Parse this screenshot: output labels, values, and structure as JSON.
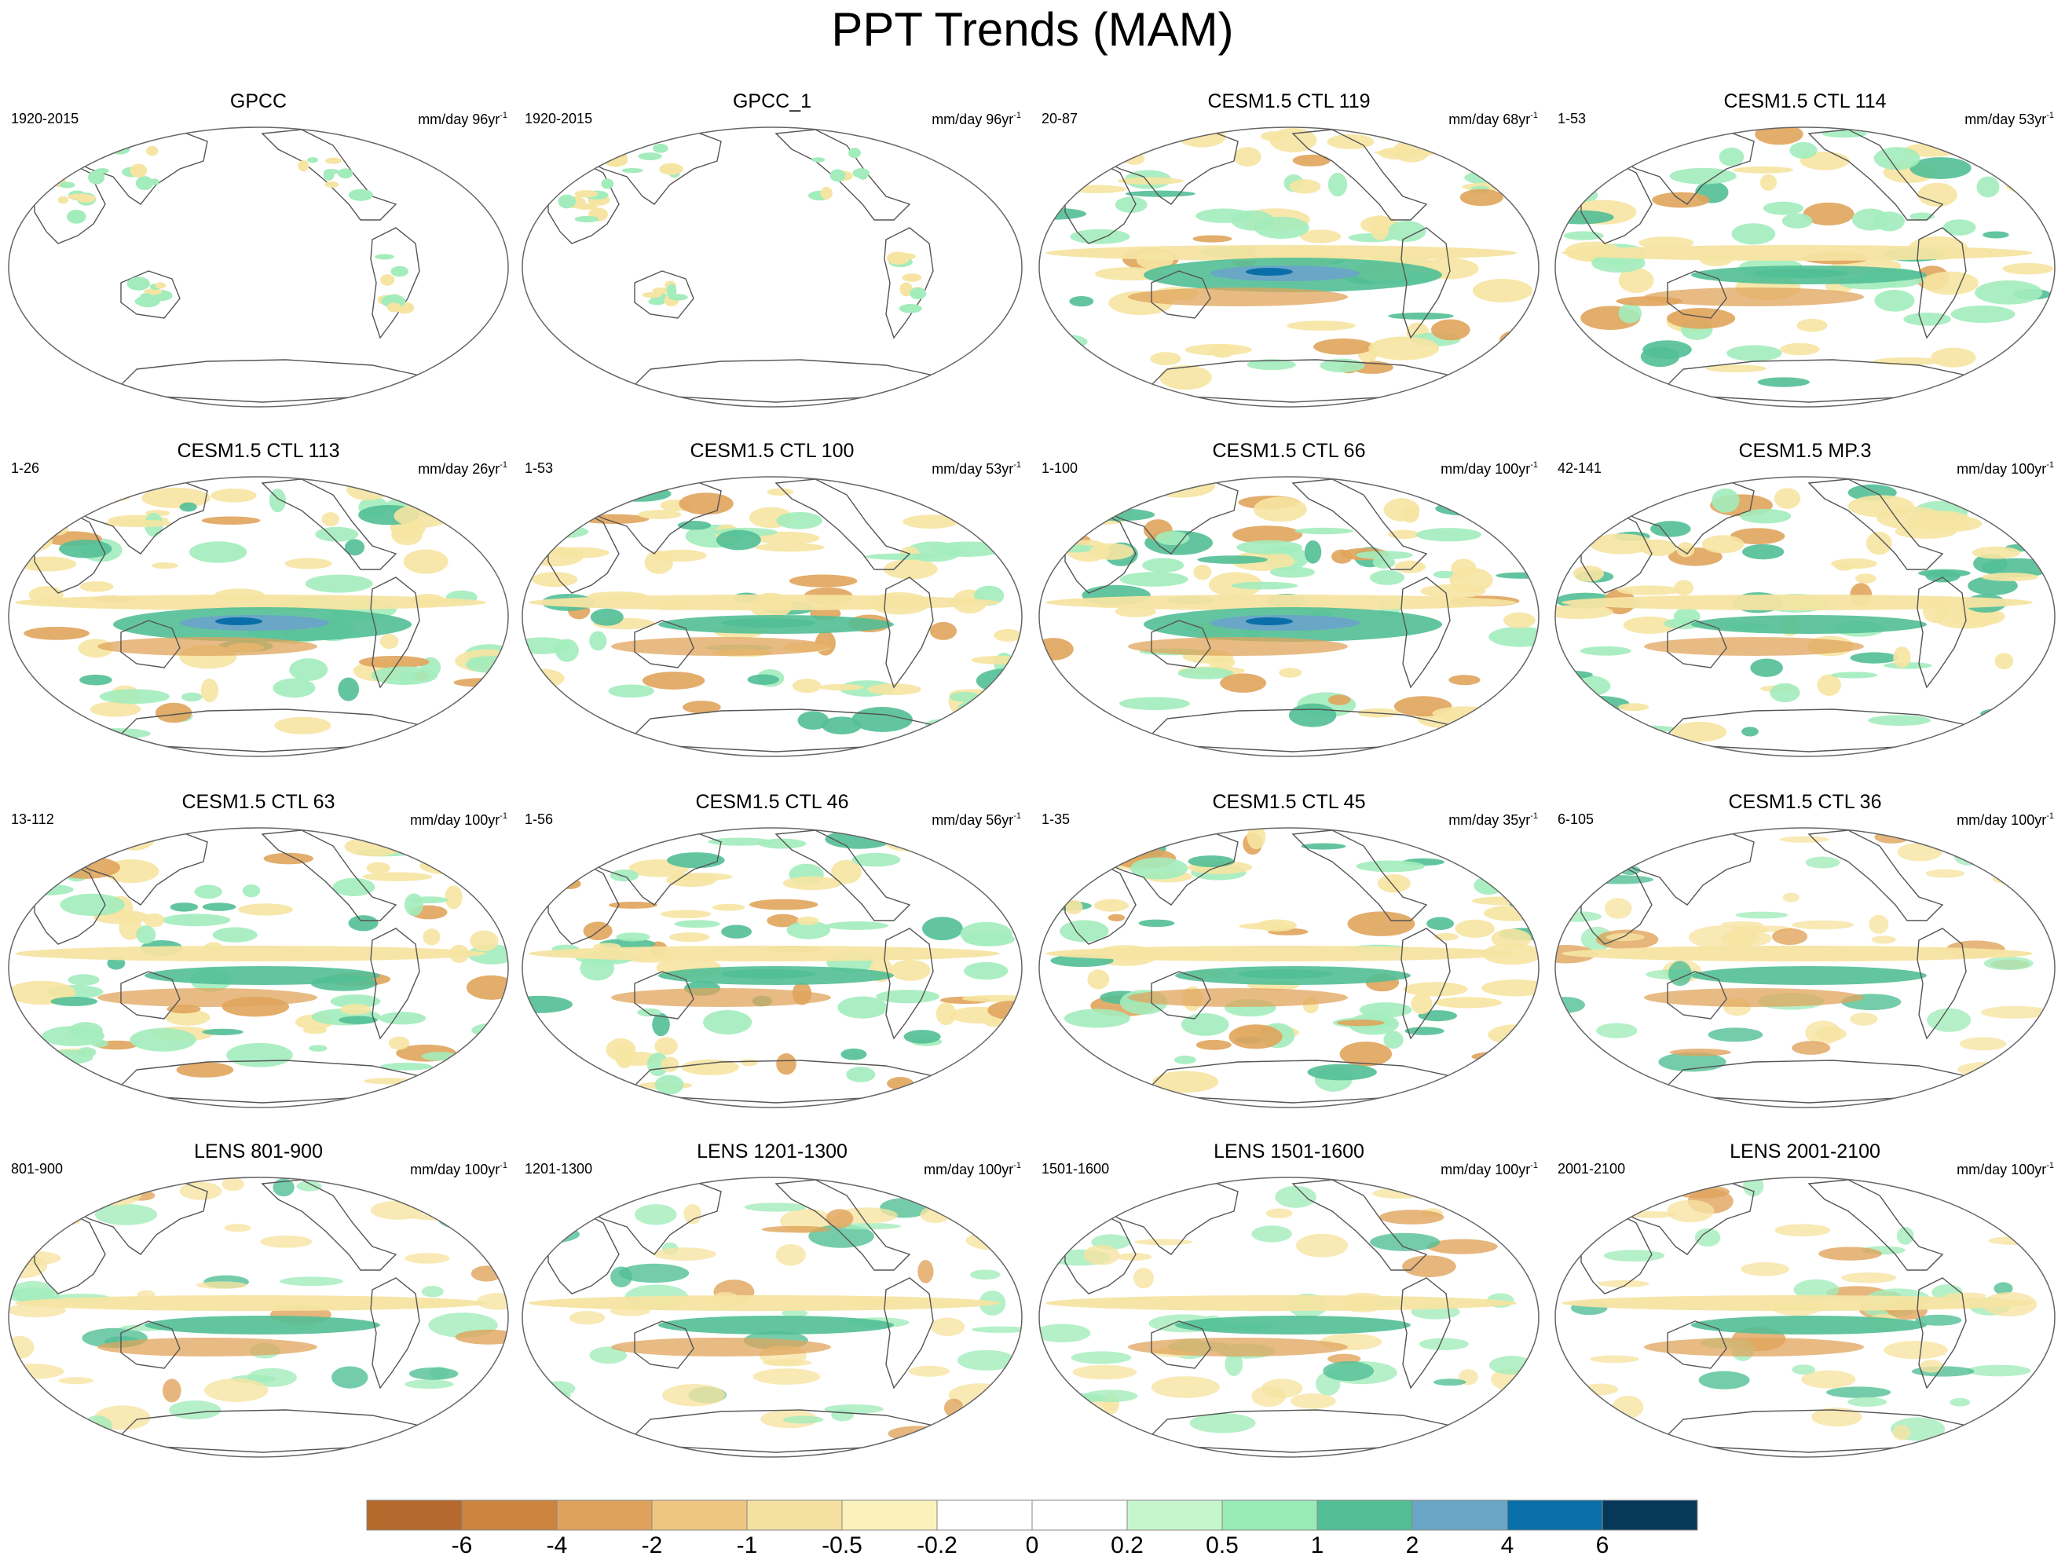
{
  "title": "PPT Trends (MAM)",
  "colors": {
    "land_outline": "#555555",
    "map_border": "#666666",
    "neg_strong": "#b5692c",
    "neg_med": "#e0a45c",
    "neg_weak": "#f6e4a2",
    "pos_weak": "#a3ecbc",
    "pos_med": "#52bf96",
    "pos_strong": "#6aa6c6",
    "pos_max": "#0a6fa9"
  },
  "panels": [
    {
      "title": "GPCC",
      "left_label": "1920-2015",
      "units": "mm/day 96yr",
      "units_exp": "-1",
      "pattern": "land-only"
    },
    {
      "title": "GPCC_1",
      "left_label": "1920-2015",
      "units": "mm/day 96yr",
      "units_exp": "-1",
      "pattern": "land-only"
    },
    {
      "title": "CESM1.5 CTL 119",
      "left_label": "20-87",
      "units": "mm/day 68yr",
      "units_exp": "-1",
      "pattern": "strong-positive-pacific"
    },
    {
      "title": "CESM1.5 CTL 114",
      "left_label": "1-53",
      "units": "mm/day 53yr",
      "units_exp": "-1",
      "pattern": "positive-pacific"
    },
    {
      "title": "CESM1.5 CTL 113",
      "left_label": "1-26",
      "units": "mm/day 26yr",
      "units_exp": "-1",
      "pattern": "strong-positive-pacific"
    },
    {
      "title": "CESM1.5 CTL 100",
      "left_label": "1-53",
      "units": "mm/day 53yr",
      "units_exp": "-1",
      "pattern": "positive-pacific"
    },
    {
      "title": "CESM1.5 CTL 66",
      "left_label": "1-100",
      "units": "mm/day 100yr",
      "units_exp": "-1",
      "pattern": "strong-positive-pacific"
    },
    {
      "title": "CESM1.5 MP.3",
      "left_label": "42-141",
      "units": "mm/day 100yr",
      "units_exp": "-1",
      "pattern": "mixed"
    },
    {
      "title": "CESM1.5 CTL 63",
      "left_label": "13-112",
      "units": "mm/day 100yr",
      "units_exp": "-1",
      "pattern": "mixed"
    },
    {
      "title": "CESM1.5 CTL 46",
      "left_label": "1-56",
      "units": "mm/day 56yr",
      "units_exp": "-1",
      "pattern": "positive-pacific"
    },
    {
      "title": "CESM1.5 CTL 45",
      "left_label": "1-35",
      "units": "mm/day 35yr",
      "units_exp": "-1",
      "pattern": "positive-pacific"
    },
    {
      "title": "CESM1.5 CTL 36",
      "left_label": "6-105",
      "units": "mm/day 100yr",
      "units_exp": "-1",
      "pattern": "weak"
    },
    {
      "title": "LENS 801-900",
      "left_label": "801-900",
      "units": "mm/day 100yr",
      "units_exp": "-1",
      "pattern": "weak"
    },
    {
      "title": "LENS 1201-1300",
      "left_label": "1201-1300",
      "units": "mm/day 100yr",
      "units_exp": "-1",
      "pattern": "weak"
    },
    {
      "title": "LENS 1501-1600",
      "left_label": "1501-1600",
      "units": "mm/day 100yr",
      "units_exp": "-1",
      "pattern": "weak"
    },
    {
      "title": "LENS 2001-2100",
      "left_label": "2001-2100",
      "units": "mm/day 100yr",
      "units_exp": "-1",
      "pattern": "weak"
    }
  ],
  "chart_data": {
    "type": "heatmap",
    "title": "PPT Trends (MAM)",
    "colorbar": {
      "tick_labels": [
        "-6",
        "-4",
        "-2",
        "-1",
        "-0.5",
        "-0.2",
        "0",
        "0.2",
        "0.5",
        "1",
        "2",
        "4",
        "6"
      ],
      "colors": [
        "#b5692c",
        "#cc843f",
        "#dea25c",
        "#efc67f",
        "#f4e0a0",
        "#fbf1bb",
        "#ffffff",
        "#ffffff",
        "#c6f7cc",
        "#98ebb5",
        "#52bf96",
        "#6aa6c6",
        "#0a6fa9",
        "#07385a"
      ]
    }
  }
}
